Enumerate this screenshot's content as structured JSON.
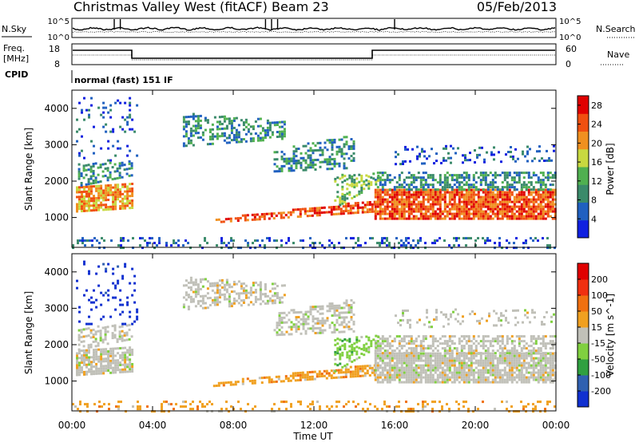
{
  "header": {
    "title": "Christmas Valley West (fitACF)",
    "beam": "Beam 23",
    "date": "05/Feb/2013"
  },
  "panels": {
    "nsky_label": "N.Sky",
    "nsearch_label": "N.Search",
    "nsky_ticks": [
      "10^5",
      "10^0"
    ],
    "nsearch_ticks": [
      "10^5",
      "10^0"
    ],
    "freq_label_1": "Freq.",
    "freq_label_2": "[MHz]",
    "freq_ticks": [
      "18",
      "8"
    ],
    "nave_label": "Nave",
    "nave_ticks": [
      "60",
      "0"
    ],
    "cpid_label": "CPID",
    "cpid_text": "normal (fast) 151 IF"
  },
  "chart_data": [
    {
      "type": "heatmap",
      "name": "power",
      "xlabel": "Time UT",
      "ylabel": "Slant Range [km]",
      "x_ticks": [
        "00:00",
        "04:00",
        "08:00",
        "12:00",
        "16:00",
        "20:00",
        "00:00"
      ],
      "xlim_hours": [
        0,
        24
      ],
      "y_ticks": [
        1000,
        2000,
        3000,
        4000
      ],
      "ylim": [
        180,
        4500
      ],
      "colorbar_label": "Power [dB]",
      "colorbar_ticks": [
        4,
        8,
        12,
        16,
        20,
        24,
        28
      ],
      "colorbar_range": [
        0,
        30
      ],
      "colors": [
        "#1020e0",
        "#2060c0",
        "#3a8a6a",
        "#50b050",
        "#c8d840",
        "#f09020",
        "#f05010",
        "#e00000"
      ]
    },
    {
      "type": "heatmap",
      "name": "velocity",
      "xlabel": "Time UT",
      "ylabel": "Slant Range [km]",
      "x_ticks": [
        "00:00",
        "04:00",
        "08:00",
        "12:00",
        "16:00",
        "20:00",
        "00:00"
      ],
      "xlim_hours": [
        0,
        24
      ],
      "y_ticks": [
        1000,
        2000,
        3000,
        4000
      ],
      "ylim": [
        180,
        4500
      ],
      "colorbar_label": "Velocity [m s^-1]",
      "colorbar_ticks": [
        200,
        100,
        50,
        15,
        -15,
        -50,
        -100,
        -200
      ],
      "colors": [
        "#1030d0",
        "#3060b0",
        "#30a040",
        "#80d040",
        "#c0c0b8",
        "#f0a020",
        "#f07010",
        "#f03010",
        "#e00000"
      ]
    }
  ]
}
